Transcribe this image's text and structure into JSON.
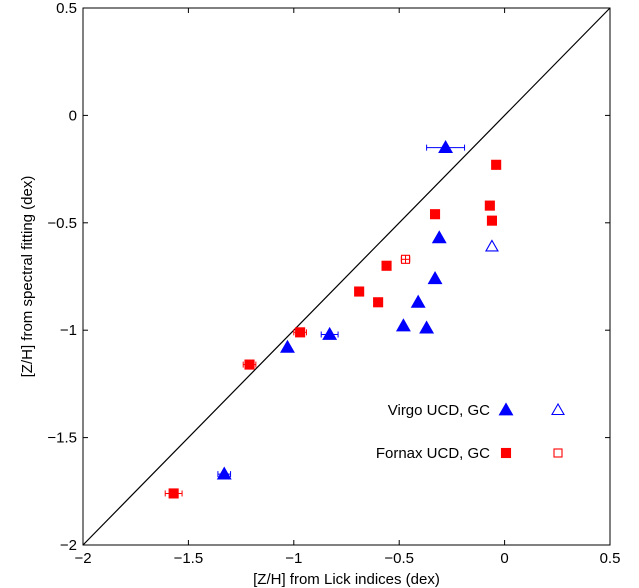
{
  "chart_data": {
    "type": "scatter",
    "title": "",
    "xlabel": "[Z/H] from Lick indices (dex)",
    "ylabel": "[Z/H] from spectral fitting (dex)",
    "xlim": [
      -2,
      0.5
    ],
    "ylim": [
      -2,
      0.5
    ],
    "x_ticks": [
      -2,
      -1.5,
      -1,
      -0.5,
      0,
      0.5
    ],
    "y_ticks": [
      -2,
      -1.5,
      -1,
      -0.5,
      0,
      0.5
    ],
    "x_tick_labels": [
      "−2",
      "−1.5",
      "−1",
      "−0.5",
      "0",
      "0.5"
    ],
    "y_tick_labels": [
      "−2",
      "−1.5",
      "−1",
      "−0.5",
      "0",
      "0.5"
    ],
    "grid": false,
    "legend_position": "bottom-right",
    "one_to_one_line": true,
    "colors": {
      "virgo": "#0000ff",
      "fornax": "#ff0000"
    },
    "series": [
      {
        "name": "Virgo UCD",
        "marker": "filled-triangle",
        "color": "#0000ff",
        "points": [
          {
            "x": -0.28,
            "y": -0.15,
            "xerr": 0.09
          },
          {
            "x": -0.31,
            "y": -0.57
          },
          {
            "x": -0.33,
            "y": -0.76
          },
          {
            "x": -0.41,
            "y": -0.87
          },
          {
            "x": -0.48,
            "y": -0.98
          },
          {
            "x": -0.37,
            "y": -0.99
          },
          {
            "x": -0.83,
            "y": -1.02,
            "xerr": 0.04
          },
          {
            "x": -1.03,
            "y": -1.08
          },
          {
            "x": -1.33,
            "y": -1.67,
            "xerr": 0.03
          }
        ]
      },
      {
        "name": "Virgo GC",
        "marker": "open-triangle",
        "color": "#0000ff",
        "points": [
          {
            "x": -0.06,
            "y": -0.61
          }
        ]
      },
      {
        "name": "Fornax UCD",
        "marker": "filled-square",
        "color": "#ff0000",
        "points": [
          {
            "x": -0.04,
            "y": -0.23
          },
          {
            "x": -0.07,
            "y": -0.42
          },
          {
            "x": -0.06,
            "y": -0.49
          },
          {
            "x": -0.33,
            "y": -0.46
          },
          {
            "x": -0.56,
            "y": -0.7
          },
          {
            "x": -0.69,
            "y": -0.82
          },
          {
            "x": -0.6,
            "y": -0.87
          },
          {
            "x": -0.97,
            "y": -1.01,
            "xerr": 0.03
          },
          {
            "x": -1.21,
            "y": -1.16,
            "xerr": 0.03
          },
          {
            "x": -1.57,
            "y": -1.76,
            "xerr": 0.04
          }
        ]
      },
      {
        "name": "Fornax GC",
        "marker": "open-square",
        "color": "#ff0000",
        "points": [
          {
            "x": -0.47,
            "y": -0.67,
            "xerr": 0.02,
            "yerr": 0.02
          }
        ]
      }
    ],
    "legend": [
      {
        "label": "Virgo UCD, GC",
        "filled_marker": "filled-triangle",
        "open_marker": "open-triangle",
        "color": "#0000ff"
      },
      {
        "label": "Fornax UCD, GC",
        "filled_marker": "filled-square",
        "open_marker": "open-square",
        "color": "#ff0000"
      }
    ]
  }
}
